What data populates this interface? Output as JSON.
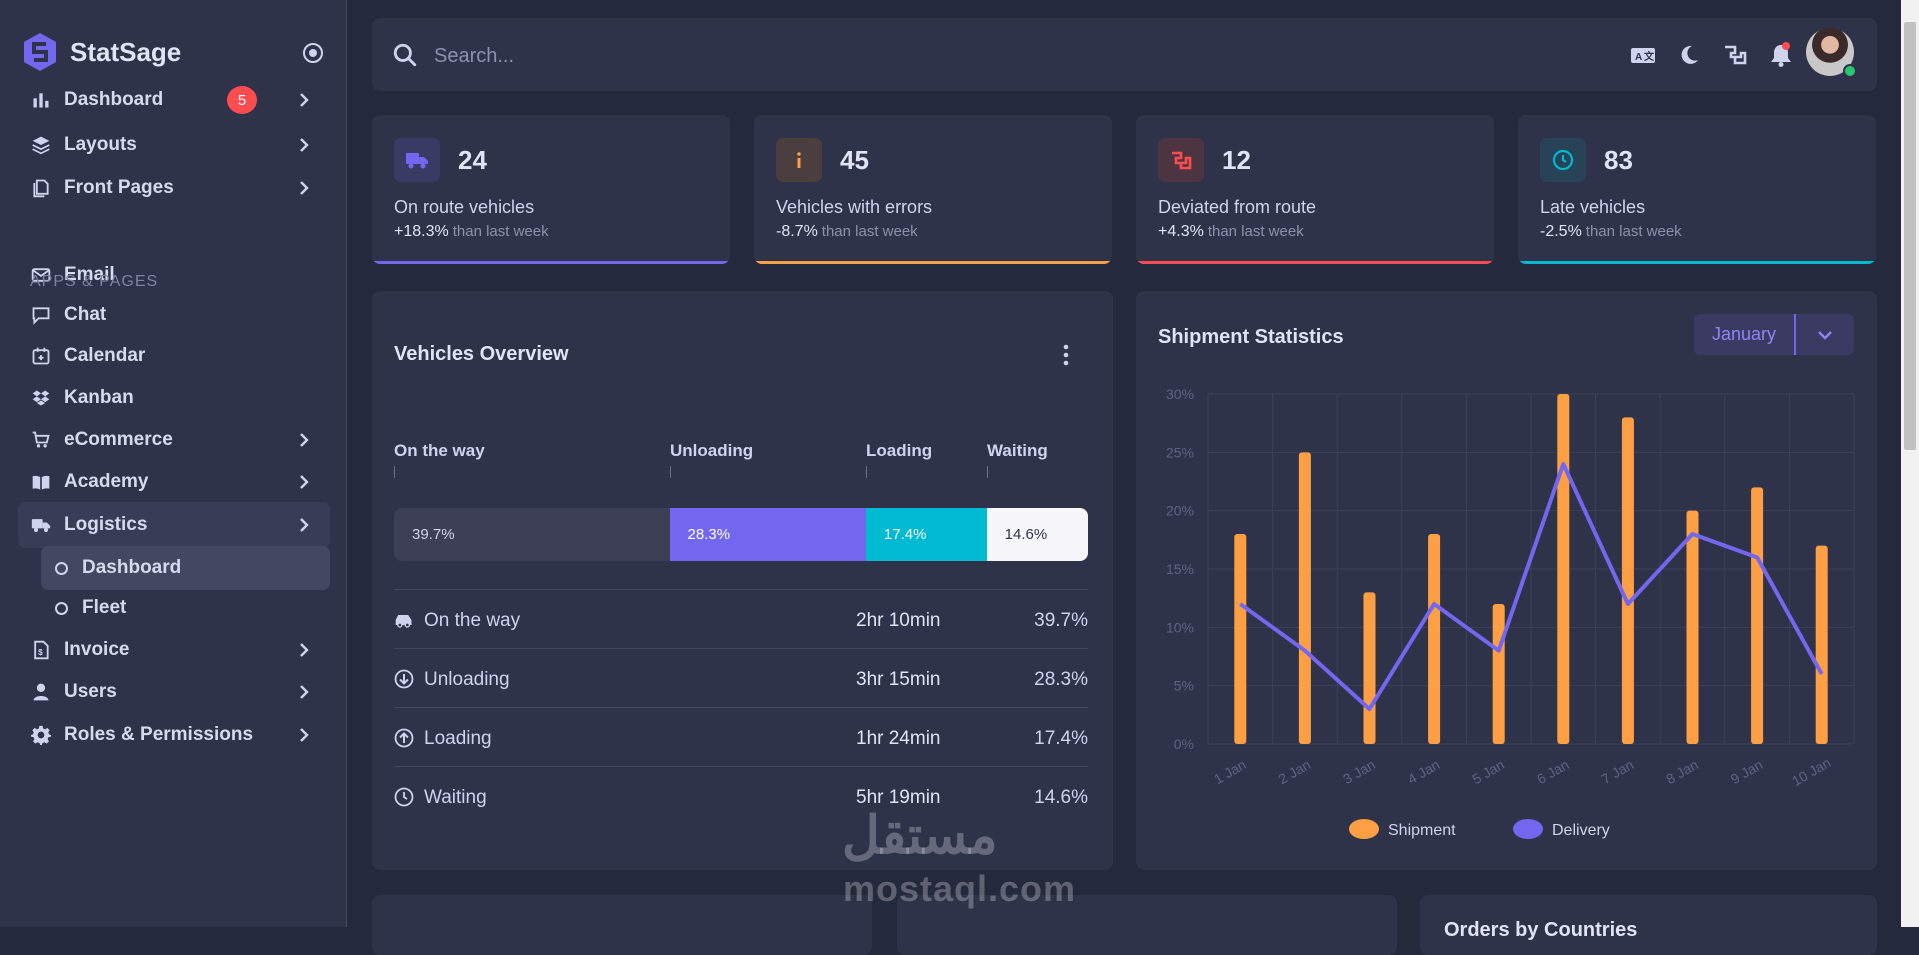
{
  "brand": {
    "name": "StatSage"
  },
  "sidebar": {
    "section_label": "APPS & PAGES",
    "items": [
      {
        "label": "Dashboard",
        "icon": "chart-bar-icon",
        "badge": "5",
        "chevron": true
      },
      {
        "label": "Layouts",
        "icon": "layers-icon",
        "chevron": true
      },
      {
        "label": "Front Pages",
        "icon": "files-icon",
        "chevron": true
      },
      {
        "label": "Email",
        "icon": "mail-icon",
        "chevron": false
      },
      {
        "label": "Chat",
        "icon": "message-icon",
        "chevron": false
      },
      {
        "label": "Calendar",
        "icon": "calendar-icon",
        "chevron": false
      },
      {
        "label": "Kanban",
        "icon": "dropbox-icon",
        "chevron": false
      },
      {
        "label": "eCommerce",
        "icon": "cart-icon",
        "chevron": true
      },
      {
        "label": "Academy",
        "icon": "book-icon",
        "chevron": true
      },
      {
        "label": "Logistics",
        "icon": "truck-icon",
        "chevron": true,
        "active": true
      },
      {
        "label": "Invoice",
        "icon": "invoice-icon",
        "chevron": true
      },
      {
        "label": "Users",
        "icon": "user-icon",
        "chevron": true
      },
      {
        "label": "Roles & Permissions",
        "icon": "gear-icon",
        "chevron": true
      }
    ],
    "logistics_sub": [
      {
        "label": "Dashboard",
        "active": true
      },
      {
        "label": "Fleet",
        "active": false
      }
    ]
  },
  "topbar": {
    "search_placeholder": "Search...",
    "icons": [
      "translate-icon",
      "moon-icon",
      "shortcuts-icon",
      "bell-icon"
    ]
  },
  "stats": [
    {
      "value": "24",
      "title": "On route vehicles",
      "change": "+18.3%",
      "sub": "than last week",
      "color": "#7367f0",
      "icon_bg": "#3a3b64",
      "icon": "truck-icon"
    },
    {
      "value": "45",
      "title": "Vehicles with errors",
      "change": "-8.7%",
      "sub": "than last week",
      "color": "#ff9f43",
      "icon_bg": "#4b3e3e",
      "icon": "info-icon"
    },
    {
      "value": "12",
      "title": "Deviated from route",
      "change": "+4.3%",
      "sub": "than last week",
      "color": "#ff4c51",
      "icon_bg": "#4c3541",
      "icon": "route-icon"
    },
    {
      "value": "83",
      "title": "Late vehicles",
      "change": "-2.5%",
      "sub": "than last week",
      "color": "#00bad1",
      "icon_bg": "#284257",
      "icon": "clock-icon"
    }
  ],
  "vehicles_overview": {
    "title": "Vehicles Overview",
    "columns": [
      "On the way",
      "Unloading",
      "Loading",
      "Waiting"
    ],
    "segments": [
      {
        "label": "39.7%",
        "value": 39.7,
        "color": "#3c3f55",
        "text": "#cfd3ec"
      },
      {
        "label": "28.3%",
        "value": 28.3,
        "color": "#7367f0",
        "text": "#ffffff"
      },
      {
        "label": "17.4%",
        "value": 17.4,
        "color": "#00bad1",
        "text": "#ffffff"
      },
      {
        "label": "14.6%",
        "value": 14.6,
        "color": "#f6f6fb",
        "text": "#2f3349"
      }
    ],
    "rows": [
      {
        "name": "On the way",
        "time": "2hr 10min",
        "pct": "39.7%",
        "icon": "car-icon"
      },
      {
        "name": "Unloading",
        "time": "3hr 15min",
        "pct": "28.3%",
        "icon": "arrow-down-circle-icon"
      },
      {
        "name": "Loading",
        "time": "1hr 24min",
        "pct": "17.4%",
        "icon": "arrow-up-circle-icon"
      },
      {
        "name": "Waiting",
        "time": "5hr 19min",
        "pct": "14.6%",
        "icon": "clock-icon"
      }
    ]
  },
  "shipment": {
    "title": "Shipment Statistics",
    "month": "January"
  },
  "chart_data": {
    "type": "bar",
    "categories": [
      "1 Jan",
      "2 Jan",
      "3 Jan",
      "4 Jan",
      "5 Jan",
      "6 Jan",
      "7 Jan",
      "8 Jan",
      "9 Jan",
      "10 Jan"
    ],
    "series": [
      {
        "name": "Shipment",
        "type": "bar",
        "color": "#ff9f43",
        "values": [
          18,
          25,
          13,
          18,
          12,
          30,
          28,
          20,
          22,
          17
        ]
      },
      {
        "name": "Delivery",
        "type": "line",
        "color": "#7367f0",
        "values": [
          12,
          8,
          3,
          12,
          8,
          24,
          12,
          18,
          16,
          6
        ]
      }
    ],
    "yticks": [
      "0%",
      "5%",
      "10%",
      "15%",
      "20%",
      "25%",
      "30%"
    ],
    "ylim": [
      0,
      30
    ],
    "legend": "bottom",
    "grid": true
  },
  "bottom": {
    "orders_title": "Orders by Countries"
  },
  "watermark": {
    "top": "مستقل",
    "bottom": "mostaql.com"
  }
}
